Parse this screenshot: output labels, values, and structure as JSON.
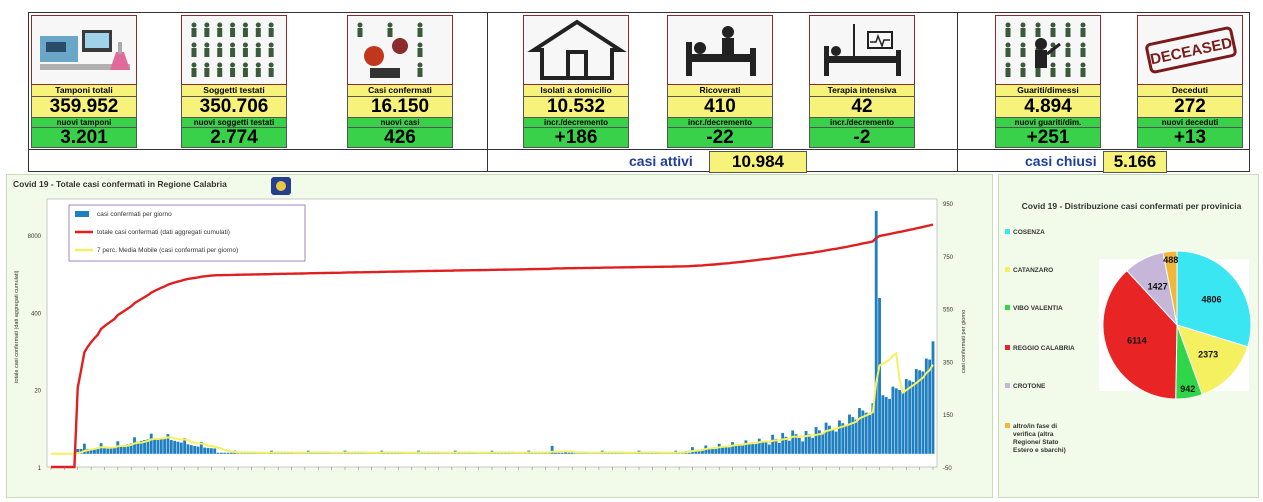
{
  "kpi": {
    "tamponi": {
      "label": "Tamponi totali",
      "value": "359.952",
      "sub_label": "nuovi tamponi",
      "sub_value": "3.201",
      "icon": "lab-equipment-icon"
    },
    "soggetti": {
      "label": "Soggetti testati",
      "value": "350.706",
      "sub_label": "nuovi soggetti testati",
      "sub_value": "2.774",
      "icon": "people-grid-icon"
    },
    "casi": {
      "label": "Casi confermati",
      "value": "16.150",
      "sub_label": "nuovi casi",
      "sub_value": "426",
      "icon": "virus-people-icon"
    },
    "isolati": {
      "label": "Isolati a domicilio",
      "value": "10.532",
      "sub_label": "incr./decremento",
      "sub_value": "+186",
      "icon": "house-icon"
    },
    "ricoverati": {
      "label": "Ricoverati",
      "value": "410",
      "sub_label": "incr./decremento",
      "sub_value": "-22",
      "icon": "hospital-bed-icon"
    },
    "terapia": {
      "label": "Terapia intensiva",
      "value": "42",
      "sub_label": "incr./decremento",
      "sub_value": "-2",
      "icon": "icu-bed-icon"
    },
    "guariti": {
      "label": "Guariti/dimessi",
      "value": "4.894",
      "sub_label": "nuovi guariti/dim.",
      "sub_value": "+251",
      "icon": "recovered-person-icon"
    },
    "deceduti": {
      "label": "Deceduti",
      "value": "272",
      "sub_label": "nuovi deceduti",
      "sub_value": "+13",
      "icon": "deceased-stamp-icon",
      "stamp": "DECEASED"
    }
  },
  "summary": {
    "attivi_label": "casi attivi",
    "attivi_value": "10.984",
    "chiusi_label": "casi chiusi",
    "chiusi_value": "5.166"
  },
  "chart_data": [
    {
      "type": "bar",
      "title": "Covid 19 - Totale casi confermati in Regione Calabria",
      "ylabel": "totale casi confermati (dati aggregati cumulati)",
      "y2label": "casi confermati per giorno",
      "left_ticks": [
        "8000",
        "400",
        "20",
        "1"
      ],
      "right_ticks": [
        "950",
        "750",
        "550",
        "350",
        "150",
        "-50"
      ],
      "legend": [
        {
          "name": "casi confermati per giorno",
          "color": "#1f7fc0"
        },
        {
          "name": "totale casi confermati (dati aggregati cumulati)",
          "color": "#e02020"
        },
        {
          "name": "7 perc. Media Mobile (casi confermati per giorno)",
          "color": "#f5f060"
        }
      ],
      "legend_position": "top-left",
      "daily_peak": 920,
      "daily_last": 426,
      "total_last": 16150
    },
    {
      "type": "pie",
      "title": "Covid 19 - Distribuzione casi confermati per provinicia",
      "slices": [
        {
          "name": "COSENZA",
          "value": 4806,
          "color": "#39e6f2"
        },
        {
          "name": "CATANZARO",
          "value": 2373,
          "color": "#f5f060"
        },
        {
          "name": "VIBO VALENTIA",
          "value": 942,
          "color": "#2fd64a"
        },
        {
          "name": "REGGIO CALABRIA",
          "value": 6114,
          "color": "#e82424"
        },
        {
          "name": "CROTONE",
          "value": 1427,
          "color": "#c6b6d8"
        },
        {
          "name": "altro/in fase di verifica (altra Regione/ Stato Estero e sbarchi)",
          "value": 488,
          "color": "#f2b63a"
        }
      ],
      "legend_position": "left"
    }
  ]
}
